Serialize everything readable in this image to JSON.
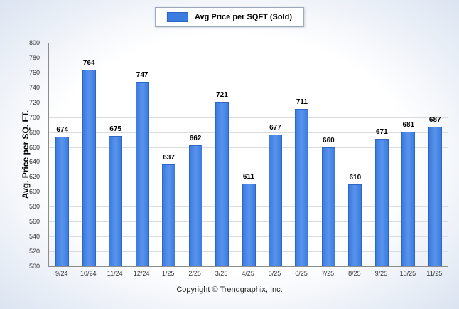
{
  "legend": {
    "label": "Avg Price per SQFT (Sold)"
  },
  "footer": {
    "copyright": "Copyright © Trendgraphix, Inc."
  },
  "chart_data": {
    "type": "bar",
    "title": "",
    "categories": [
      "9/24",
      "10/24",
      "11/24",
      "12/24",
      "1/25",
      "2/25",
      "3/25",
      "4/25",
      "5/25",
      "6/25",
      "7/25",
      "8/25",
      "9/25",
      "10/25",
      "11/25"
    ],
    "values": [
      674,
      764,
      675,
      747,
      637,
      662,
      721,
      611,
      677,
      711,
      660,
      610,
      671,
      681,
      687
    ],
    "xlabel": "",
    "ylabel": "Avg. Price per SQ. FT.",
    "ylim": [
      500,
      800
    ],
    "ytick_step": 20,
    "grid": true,
    "legend_position": "top",
    "bar_color": "#3b7ce0",
    "bar_color_light": "#5a93ec",
    "bar_border_color": "#2f66c4"
  }
}
